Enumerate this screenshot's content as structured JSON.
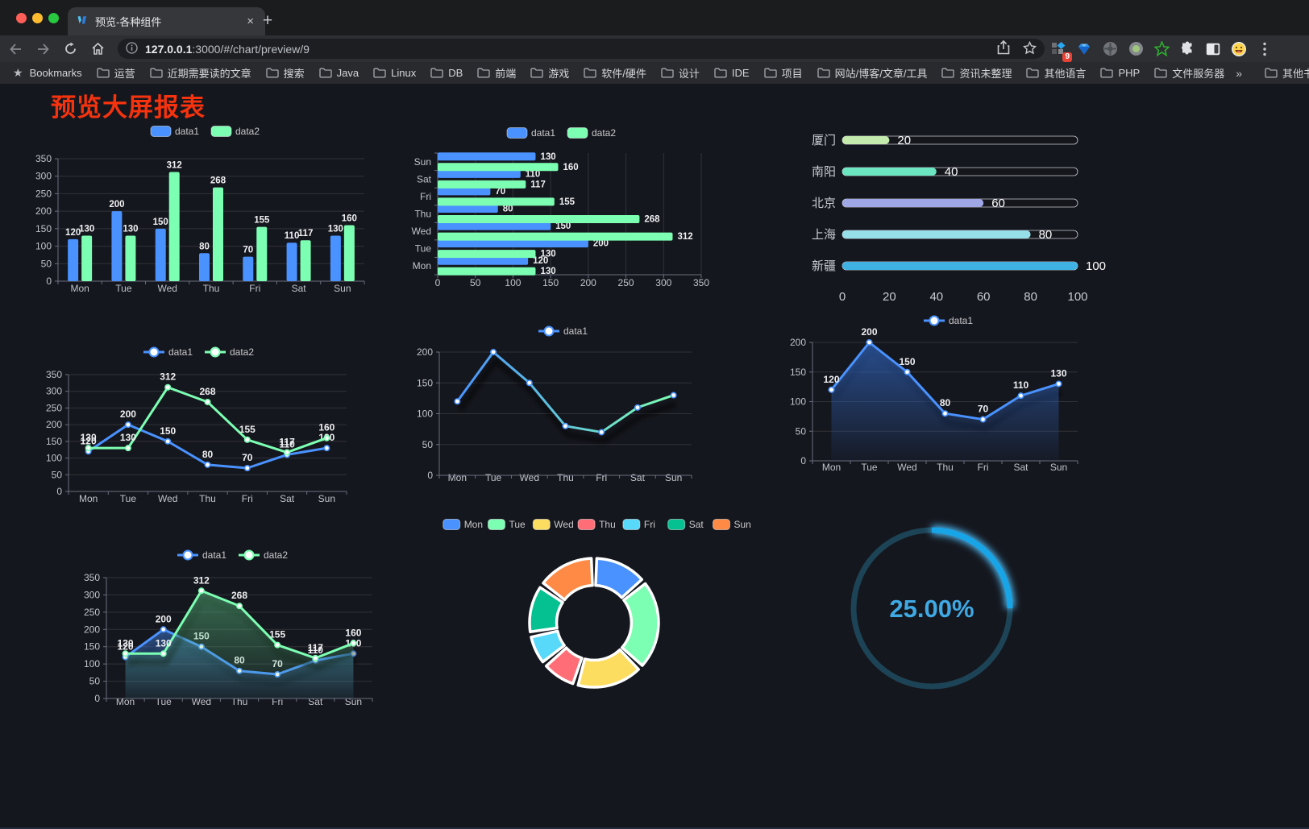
{
  "browser": {
    "tab": {
      "title": "预览-各种组件",
      "close": "×"
    },
    "new_tab": "+",
    "toolbar": {
      "url_host": "127.0.0.1",
      "url_rest": ":3000/#/chart/preview/9",
      "extension_badge": "9"
    },
    "icons": {
      "traffic_lights": [
        "close",
        "minimize",
        "zoom"
      ],
      "toolbar": [
        "back-arrow",
        "forward-arrow",
        "reload",
        "home",
        "info",
        "share",
        "bookmark-star"
      ],
      "extensions": [
        "grid-diamond",
        "vue-devtools-gem",
        "wheel",
        "recorder-dot",
        "green-star",
        "puzzle",
        "side-panel",
        "emoji-face"
      ],
      "menu": "kebab-menu"
    },
    "bookmarks_bar": {
      "label": "Bookmarks",
      "folders": [
        "运营",
        "近期需要读的文章",
        "搜索",
        "Java",
        "Linux",
        "DB",
        "前端",
        "游戏",
        "软件/硬件",
        "设计",
        "IDE",
        "项目",
        "网站/博客/文章/工具",
        "资讯未整理",
        "其他语言",
        "PHP",
        "文件服务器"
      ],
      "overflow": "»",
      "other": "其他书签"
    }
  },
  "page": {
    "title": "预览大屏报表",
    "title_color": "#f5330f",
    "background": "#15171e"
  },
  "palette": {
    "grid_line": "rgba(255,255,255,0.12)",
    "axis_line": "#6b6f7e",
    "tick_text": "#c2c4cb",
    "value_label_text": "#eef0f2",
    "legend_text": "#c8c9cc"
  },
  "chart_data": [
    {
      "id": "grouped-bar",
      "type": "bar",
      "orientation": "vertical",
      "categories": [
        "Mon",
        "Tue",
        "Wed",
        "Thu",
        "Fri",
        "Sat",
        "Sun"
      ],
      "series": [
        {
          "name": "data1",
          "color": "#4992ff",
          "values": [
            120,
            200,
            150,
            80,
            70,
            110,
            130
          ]
        },
        {
          "name": "data2",
          "color": "#7cffb2",
          "values": [
            130,
            130,
            312,
            268,
            155,
            117,
            160
          ]
        }
      ],
      "ylim": [
        0,
        350
      ],
      "ytick_step": 50,
      "grid": true,
      "value_labels": true,
      "legend_position": "top"
    },
    {
      "id": "grouped-bar-horizontal",
      "type": "bar",
      "orientation": "horizontal",
      "categories": [
        "Mon",
        "Tue",
        "Wed",
        "Thu",
        "Fri",
        "Sat",
        "Sun"
      ],
      "series": [
        {
          "name": "data1",
          "color": "#4992ff",
          "values": [
            120,
            200,
            150,
            80,
            70,
            110,
            130
          ]
        },
        {
          "name": "data2",
          "color": "#7cffb2",
          "values": [
            130,
            130,
            312,
            268,
            155,
            117,
            160
          ]
        }
      ],
      "xlim": [
        0,
        350
      ],
      "xtick_step": 50,
      "grid": true,
      "value_labels": true,
      "legend_position": "top"
    },
    {
      "id": "city-progress",
      "type": "bar",
      "orientation": "horizontal",
      "style": "progress",
      "categories": [
        "厦门",
        "南阳",
        "北京",
        "上海",
        "新疆"
      ],
      "values": [
        20,
        40,
        60,
        80,
        100
      ],
      "colors": [
        "#c4ebad",
        "#6be6c1",
        "#a0a7e6",
        "#96dee8",
        "#3fb1e3"
      ],
      "xlim": [
        0,
        100
      ],
      "xtick_step": 20,
      "value_labels": true
    },
    {
      "id": "line-two-series",
      "type": "line",
      "categories": [
        "Mon",
        "Tue",
        "Wed",
        "Thu",
        "Fri",
        "Sat",
        "Sun"
      ],
      "series": [
        {
          "name": "data1",
          "color": "#4992ff",
          "values": [
            120,
            200,
            150,
            80,
            70,
            110,
            130
          ]
        },
        {
          "name": "data2",
          "color": "#7cffb2",
          "values": [
            130,
            130,
            312,
            268,
            155,
            117,
            160
          ]
        }
      ],
      "ylim": [
        0,
        350
      ],
      "ytick_step": 50,
      "value_labels": true,
      "legend_position": "top"
    },
    {
      "id": "line-gradient",
      "type": "line",
      "categories": [
        "Mon",
        "Tue",
        "Wed",
        "Thu",
        "Fri",
        "Sat",
        "Sun"
      ],
      "series": [
        {
          "name": "data1",
          "color": "#4992ff",
          "color_gradient": [
            "#4992ff",
            "#7cffb2"
          ],
          "values": [
            120,
            200,
            150,
            80,
            70,
            110,
            130
          ]
        }
      ],
      "ylim": [
        0,
        200
      ],
      "ytick_step": 50,
      "value_labels": false,
      "shadow": true,
      "legend_position": "top"
    },
    {
      "id": "line-area-blue",
      "type": "area",
      "categories": [
        "Mon",
        "Tue",
        "Wed",
        "Thu",
        "Fri",
        "Sat",
        "Sun"
      ],
      "series": [
        {
          "name": "data1",
          "color": "#4992ff",
          "area_from": "rgba(47,96,180,0.75)",
          "area_to": "rgba(47,96,180,0.05)",
          "values": [
            120,
            200,
            150,
            80,
            70,
            110,
            130
          ]
        }
      ],
      "ylim": [
        0,
        200
      ],
      "ytick_step": 50,
      "value_labels": true,
      "legend_position": "top"
    },
    {
      "id": "area-two-series",
      "type": "area",
      "categories": [
        "Mon",
        "Tue",
        "Wed",
        "Thu",
        "Fri",
        "Sat",
        "Sun"
      ],
      "series": [
        {
          "name": "data1",
          "color": "#4992ff",
          "area_from": "rgba(73,146,255,0.45)",
          "area_to": "rgba(73,146,255,0.05)",
          "values": [
            120,
            200,
            150,
            80,
            70,
            110,
            130
          ]
        },
        {
          "name": "data2",
          "color": "#7cffb2",
          "area_from": "rgba(90,190,130,0.50)",
          "area_to": "rgba(90,190,130,0.05)",
          "values": [
            130,
            130,
            312,
            268,
            155,
            117,
            160
          ]
        }
      ],
      "ylim": [
        0,
        350
      ],
      "ytick_step": 50,
      "value_labels": true,
      "legend_position": "top"
    },
    {
      "id": "donut",
      "type": "pie",
      "inner_radius_ratio": 0.58,
      "categories": [
        "Mon",
        "Tue",
        "Wed",
        "Thu",
        "Fri",
        "Sat",
        "Sun"
      ],
      "values": [
        120,
        200,
        150,
        80,
        70,
        110,
        130
      ],
      "colors": [
        "#4992ff",
        "#7cffb2",
        "#fddd60",
        "#ff6e76",
        "#58d9f9",
        "#05c091",
        "#ff8a45"
      ],
      "legend_position": "top"
    },
    {
      "id": "gauge",
      "type": "gauge",
      "value": 25,
      "max": 100,
      "label": "25.00%",
      "progress_color": "#18a5e8",
      "track_color": "#1d4456",
      "text_color": "#3fa9e4"
    }
  ]
}
